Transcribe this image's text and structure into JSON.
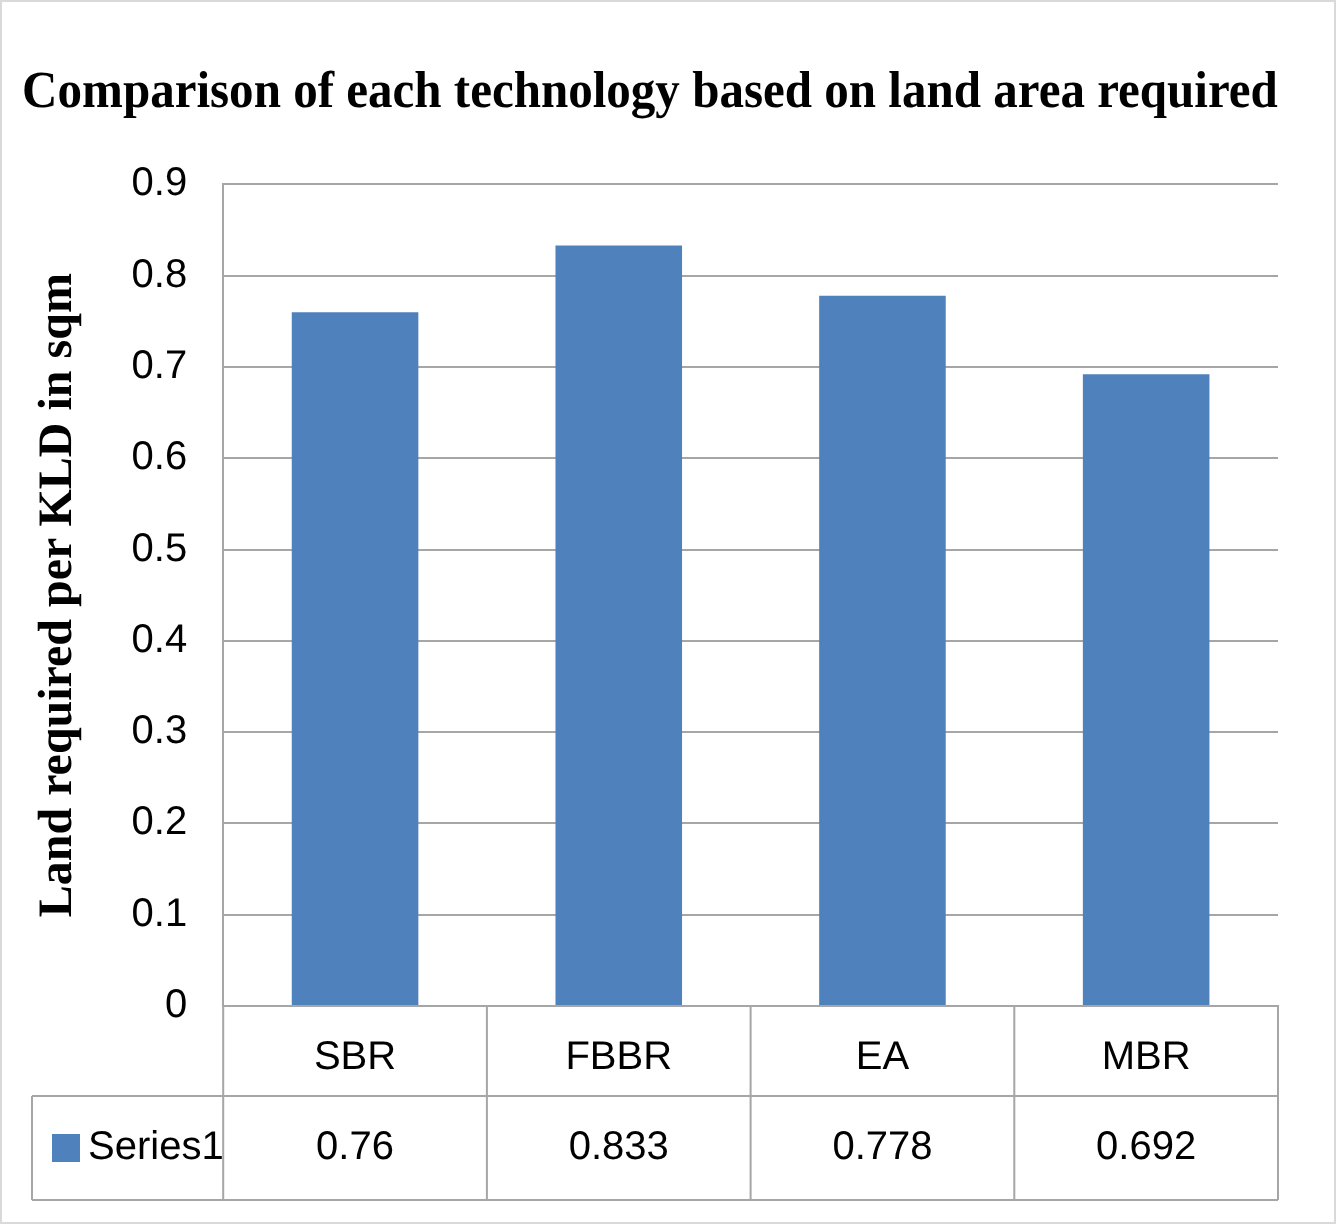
{
  "chart_data": {
    "type": "bar",
    "title": "Comparison of each technology based on land area required",
    "ylabel": "Land required per KLD in sqm",
    "categories": [
      "SBR",
      "FBBR",
      "EA",
      "MBR"
    ],
    "series": [
      {
        "name": "Series1",
        "color": "#4f81bd",
        "values": [
          0.76,
          0.833,
          0.778,
          0.692
        ]
      }
    ],
    "ylim": [
      0,
      0.9
    ],
    "yticks": [
      0,
      0.1,
      0.2,
      0.3,
      0.4,
      0.5,
      0.6,
      0.7,
      0.8,
      0.9
    ],
    "grid": "y",
    "legend": "bottom",
    "data_labels": true
  }
}
